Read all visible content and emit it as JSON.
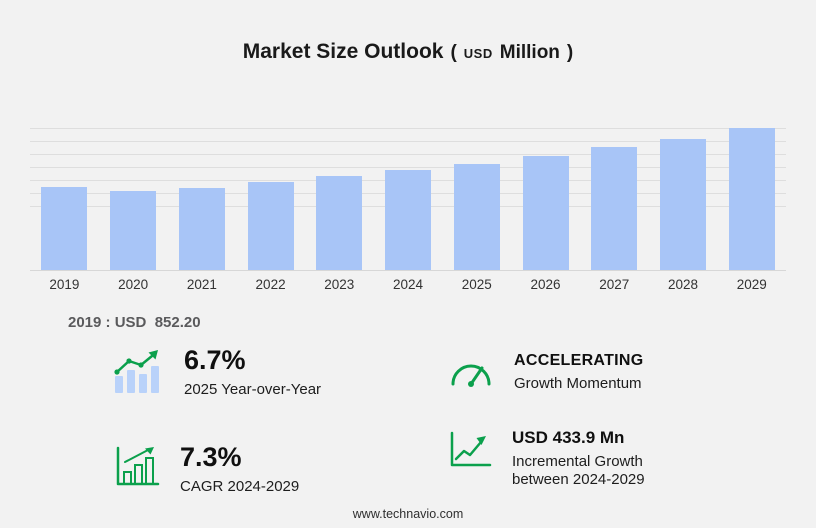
{
  "title": {
    "main": "Market Size Outlook",
    "paren_open": "(",
    "currency": "USD",
    "unit": "Million",
    "paren_close": ")"
  },
  "chart_data": {
    "type": "bar",
    "title": "Market Size Outlook (USD Million)",
    "categories": [
      "2019",
      "2020",
      "2021",
      "2022",
      "2023",
      "2024",
      "2025",
      "2026",
      "2027",
      "2028",
      "2029"
    ],
    "values": [
      852.2,
      808,
      843,
      901,
      962,
      1025,
      1093.7,
      1173,
      1259,
      1350,
      1458.9
    ],
    "xlabel": "",
    "ylabel": "USD Million",
    "ylim": [
      0,
      1500
    ],
    "grid": "horizontal",
    "legend": "none",
    "bar_color": "#a8c5f7"
  },
  "annotation": {
    "text": "2019 : USD  852.20"
  },
  "stats": {
    "yoy": {
      "value": "6.7%",
      "label": "2025 Year-over-Year"
    },
    "momentum": {
      "title": "ACCELERATING",
      "label": "Growth Momentum"
    },
    "cagr": {
      "value": "7.3%",
      "label": "CAGR 2024-2029"
    },
    "incremental": {
      "value": "USD 433.9 Mn",
      "label_line1": "Incremental Growth",
      "label_line2": "between 2024-2029"
    }
  },
  "colors": {
    "accent_green": "#0ba04c",
    "bar_blue": "#a8c5f7",
    "background": "#f2f2f2"
  },
  "footer": {
    "url": "www.technavio.com"
  }
}
